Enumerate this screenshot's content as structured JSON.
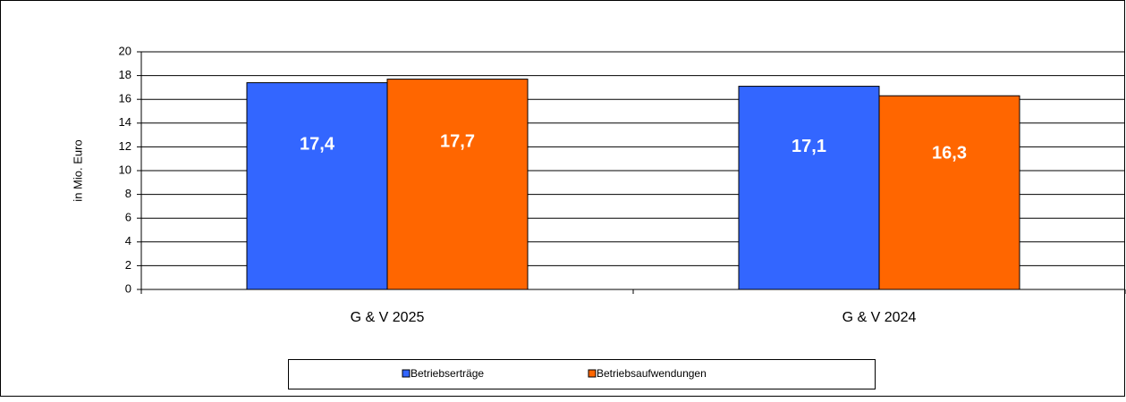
{
  "chart_data": {
    "type": "bar",
    "categories": [
      "G & V 2025",
      "G & V 2024"
    ],
    "series": [
      {
        "name": "Betriebserträge",
        "color": "#3366ff",
        "values": [
          17.4,
          17.1
        ],
        "value_labels": [
          "17,4",
          "17,1"
        ]
      },
      {
        "name": "Betriebsaufwendungen",
        "color": "#ff6600",
        "values": [
          17.7,
          16.3
        ],
        "value_labels": [
          "17,7",
          "16,3"
        ]
      }
    ],
    "y_axis_label": "in Mio. Euro",
    "ylim": [
      0,
      20
    ],
    "yticks": [
      0,
      2,
      4,
      6,
      8,
      10,
      12,
      14,
      16,
      18,
      20
    ],
    "grid": true
  }
}
